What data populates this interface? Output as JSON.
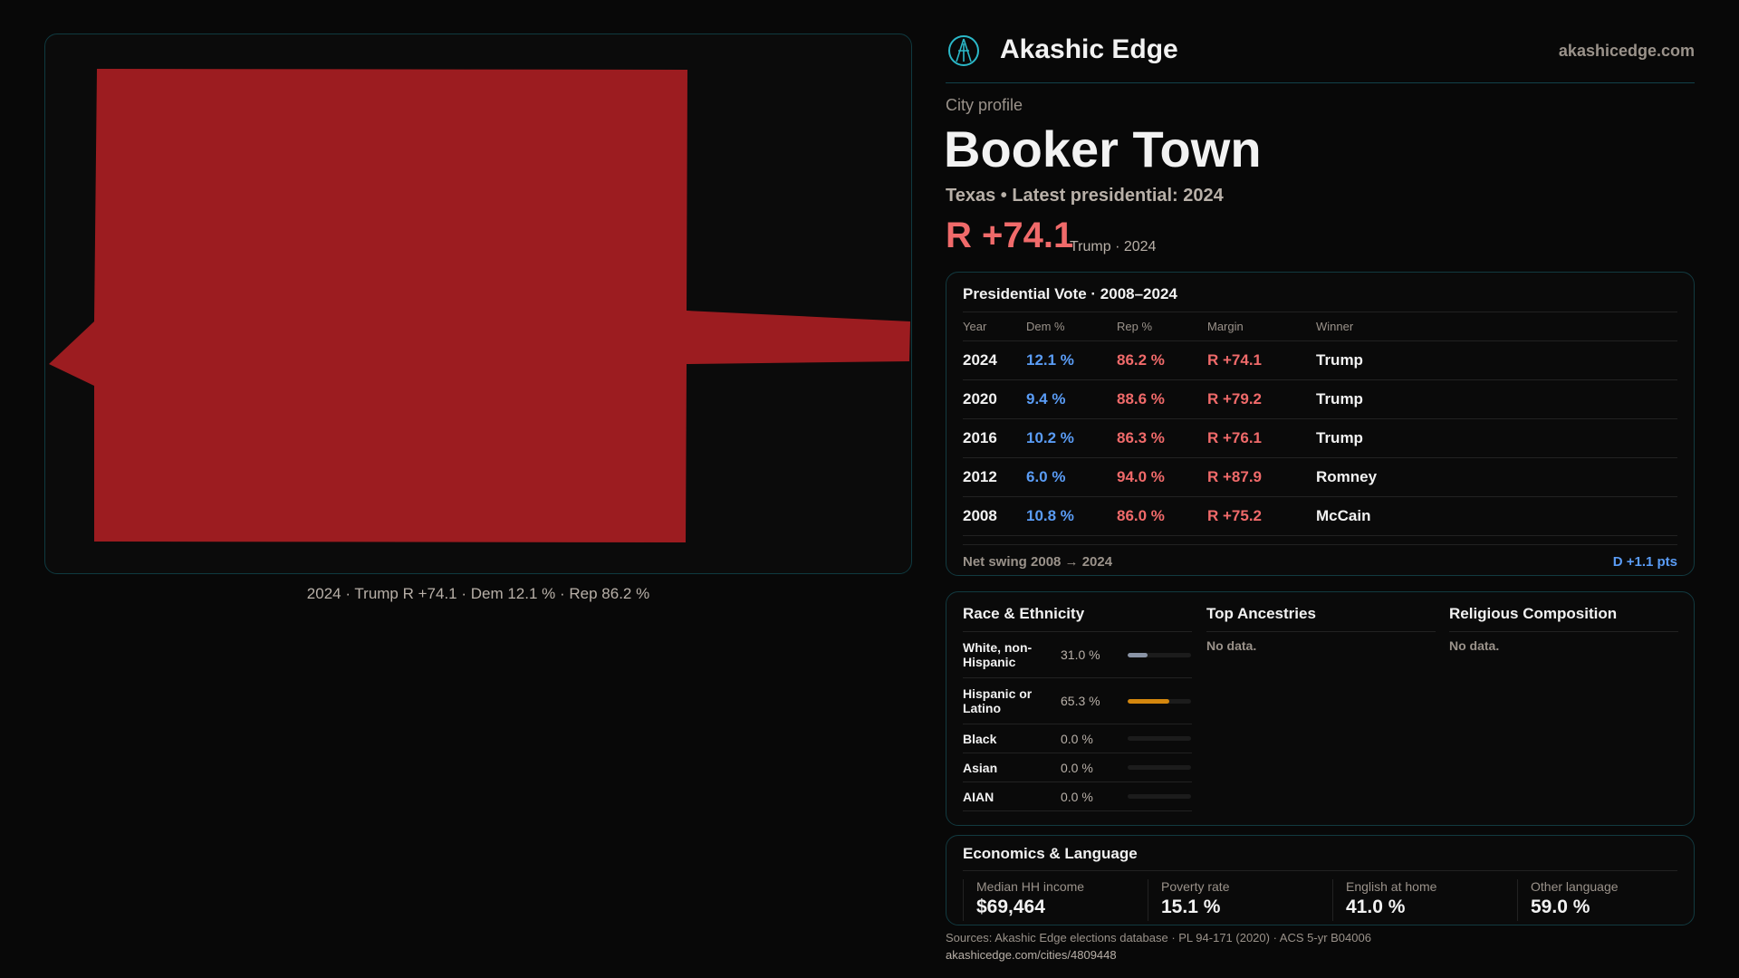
{
  "brand": {
    "name": "Akashic Edge",
    "site": "akashicedge.com",
    "logo_icon": "compass-emblem-icon",
    "accent": "#2bb8c8"
  },
  "profile": {
    "kicker": "City profile",
    "title": "Booker Town",
    "subtitle": "Texas • Latest presidential: 2024",
    "margin": "R +74.1",
    "margin_note": "Trump · 2024",
    "rep_color": "#f06a6a",
    "dem_color": "#5a9cf5"
  },
  "map": {
    "caption": "2024 · Trump R +74.1 · Dem 12.1 % · Rep 86.2 %",
    "fill": "#9c1c20"
  },
  "vote": {
    "title": "Presidential Vote · 2008–2024",
    "headers": [
      "Year",
      "Dem %",
      "Rep %",
      "Margin",
      "Winner"
    ],
    "rows": [
      [
        "2024",
        "12.1 %",
        "86.2 %",
        "R +74.1",
        "Trump"
      ],
      [
        "2020",
        "9.4 %",
        "88.6 %",
        "R +79.2",
        "Trump"
      ],
      [
        "2016",
        "10.2 %",
        "86.3 %",
        "R +76.1",
        "Trump"
      ],
      [
        "2012",
        "6.0 %",
        "94.0 %",
        "R +87.9",
        "Romney"
      ],
      [
        "2008",
        "10.8 %",
        "86.0 %",
        "R +75.2",
        "McCain"
      ]
    ],
    "swing_label": "Net swing 2008 → 2024",
    "swing_value": "D +1.1 pts"
  },
  "race": {
    "title": "Race & Ethnicity",
    "items": [
      {
        "label": "White, non-Hispanic",
        "pct": "31.0 %",
        "value": 31.0,
        "color": "#8a94a6"
      },
      {
        "label": "Hispanic or Latino",
        "pct": "65.3 %",
        "value": 65.3,
        "color": "#d4870e"
      },
      {
        "label": "Black",
        "pct": "0.0 %",
        "value": 0,
        "color": "#8a94a6"
      },
      {
        "label": "Asian",
        "pct": "0.0 %",
        "value": 0,
        "color": "#8a94a6"
      },
      {
        "label": "AIAN",
        "pct": "0.0 %",
        "value": 0,
        "color": "#8a94a6"
      }
    ]
  },
  "ancestries": {
    "title": "Top Ancestries",
    "empty": "No data."
  },
  "religion": {
    "title": "Religious Composition",
    "empty": "No data."
  },
  "econ": {
    "title": "Economics & Language",
    "stats": [
      [
        "Median HH income",
        "$69,464"
      ],
      [
        "Poverty rate",
        "15.1 %"
      ],
      [
        "English at home",
        "41.0 %"
      ],
      [
        "Other language",
        "59.0 %"
      ]
    ]
  },
  "footer": {
    "sources": "Sources: Akashic Edge elections database · PL 94-171 (2020) · ACS 5-yr B04006",
    "url": "akashicedge.com/cities/4809448"
  }
}
